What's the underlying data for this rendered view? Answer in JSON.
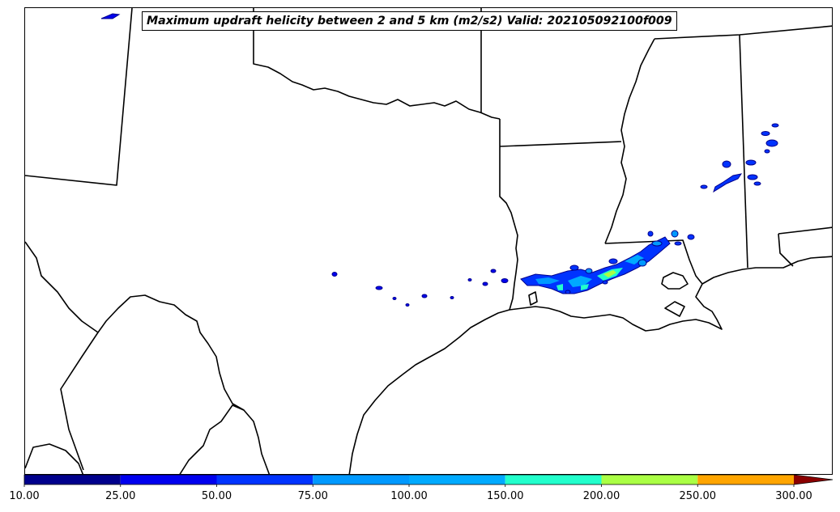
{
  "map": {
    "title": "Maximum updraft helicity between 2 and 5 km (m2/s2) Valid: 202105092100f009",
    "field": "updraft helicity",
    "colors": {
      "border": "#000000",
      "background": "#ffffff"
    }
  },
  "colorbar": {
    "levels": [
      "10.00",
      "25.00",
      "50.00",
      "75.00",
      "100.00",
      "150.00",
      "200.00",
      "250.00",
      "300.00"
    ],
    "colors": [
      "#00008c",
      "#0000ee",
      "#0033ff",
      "#0099ff",
      "#00aaff",
      "#22ffcc",
      "#aaff44",
      "#ffa500",
      "#e00000"
    ],
    "extend_color": "#8b0000"
  }
}
